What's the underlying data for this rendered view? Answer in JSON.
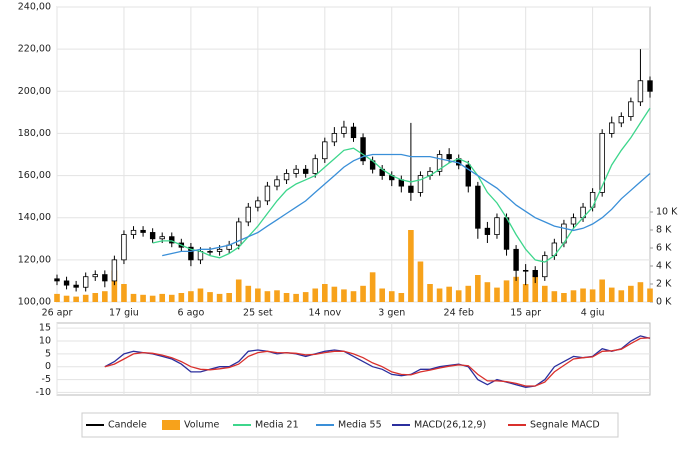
{
  "chart_data": [
    {
      "type": "candlestick",
      "categories": [
        "26 apr",
        null,
        null,
        null,
        null,
        null,
        null,
        "17 giu",
        null,
        null,
        null,
        null,
        null,
        null,
        "6 ago",
        null,
        null,
        null,
        null,
        null,
        null,
        "25 set",
        null,
        null,
        null,
        null,
        null,
        null,
        "14 nov",
        null,
        null,
        null,
        null,
        null,
        null,
        "3 gen",
        null,
        null,
        null,
        null,
        null,
        null,
        "24 feb",
        null,
        null,
        null,
        null,
        null,
        null,
        "15 apr",
        null,
        null,
        null,
        null,
        null,
        null,
        "4 giu",
        null,
        null,
        null,
        null,
        null,
        null
      ],
      "ylim": [
        100,
        240
      ],
      "yticks": [
        {
          "value": 100,
          "label": "100,00"
        },
        {
          "value": 120,
          "label": "120,00"
        },
        {
          "value": 140,
          "label": "140,00"
        },
        {
          "value": 160,
          "label": "160,00"
        },
        {
          "value": 180,
          "label": "180,00"
        },
        {
          "value": 200,
          "label": "200,00"
        },
        {
          "value": 220,
          "label": "220,00"
        },
        {
          "value": 240,
          "label": "240,00"
        }
      ],
      "y2lim": [
        0,
        10000
      ],
      "y2ticks": [
        {
          "value": 0,
          "label": "0 K"
        },
        {
          "value": 2000,
          "label": "2 K"
        },
        {
          "value": 4000,
          "label": "4 K"
        },
        {
          "value": 6000,
          "label": "6 K"
        },
        {
          "value": 8000,
          "label": "8 K"
        },
        {
          "value": 10000,
          "label": "10 K"
        }
      ],
      "grid": true,
      "series": [
        {
          "name": "Candele",
          "color": "#000000",
          "open": [
            111,
            110,
            108,
            107,
            112,
            113,
            110,
            120,
            132,
            134,
            133,
            130,
            131,
            128,
            126,
            120,
            124,
            124,
            125,
            127,
            138,
            145,
            148,
            155,
            158,
            161,
            163,
            161,
            168,
            176,
            180,
            183,
            178,
            167,
            163,
            160,
            158,
            155,
            152,
            160,
            162,
            170,
            168,
            165,
            155,
            135,
            132,
            140,
            125,
            115,
            115,
            112,
            122,
            128,
            137,
            140,
            145,
            152,
            180,
            185,
            188,
            195,
            205
          ],
          "high": [
            113,
            112,
            110,
            114,
            115,
            115,
            122,
            134,
            136,
            136,
            135,
            133,
            133,
            130,
            128,
            126,
            126,
            127,
            129,
            140,
            147,
            150,
            157,
            160,
            163,
            165,
            165,
            170,
            178,
            183,
            186,
            185,
            180,
            169,
            165,
            162,
            160,
            185,
            162,
            164,
            172,
            173,
            170,
            167,
            157,
            138,
            142,
            142,
            127,
            118,
            117,
            124,
            130,
            139,
            142,
            147,
            154,
            182,
            188,
            190,
            197,
            220,
            207
          ],
          "low": [
            108,
            106,
            105,
            105,
            110,
            107,
            108,
            118,
            130,
            131,
            128,
            128,
            126,
            124,
            117,
            118,
            122,
            122,
            123,
            125,
            136,
            143,
            146,
            153,
            156,
            159,
            159,
            159,
            166,
            174,
            178,
            176,
            165,
            161,
            158,
            155,
            152,
            148,
            150,
            158,
            160,
            166,
            163,
            152,
            130,
            128,
            130,
            122,
            110,
            108,
            109,
            110,
            120,
            126,
            135,
            138,
            143,
            150,
            178,
            183,
            186,
            193,
            197
          ],
          "close": [
            110,
            108,
            107,
            112,
            113,
            110,
            120,
            132,
            134,
            133,
            130,
            131,
            128,
            126,
            120,
            124,
            124,
            125,
            127,
            138,
            145,
            148,
            155,
            158,
            161,
            163,
            161,
            168,
            176,
            180,
            183,
            178,
            167,
            163,
            160,
            158,
            155,
            152,
            160,
            162,
            170,
            168,
            165,
            155,
            135,
            132,
            140,
            125,
            115,
            115,
            112,
            122,
            128,
            137,
            140,
            145,
            152,
            180,
            185,
            188,
            195,
            205,
            200
          ]
        },
        {
          "name": "Volume",
          "color": "#f7a21b",
          "axis": "y2",
          "values": [
            900,
            700,
            600,
            800,
            1000,
            1200,
            3500,
            2000,
            900,
            800,
            700,
            900,
            800,
            1000,
            1200,
            1500,
            1100,
            900,
            1000,
            2500,
            1800,
            1500,
            1200,
            1300,
            1000,
            900,
            1100,
            1500,
            2000,
            1700,
            1400,
            1200,
            1800,
            3300,
            1500,
            1200,
            1000,
            8000,
            4500,
            2000,
            1500,
            1700,
            1300,
            1800,
            3000,
            2200,
            1600,
            2400,
            2800,
            2000,
            3000,
            1800,
            1200,
            1000,
            1300,
            1500,
            1400,
            2500,
            1600,
            1300,
            1800,
            2200,
            1500
          ]
        },
        {
          "name": "Media 21",
          "color": "#3dd68c",
          "values": [
            null,
            null,
            null,
            null,
            null,
            null,
            null,
            null,
            null,
            null,
            128,
            129,
            129,
            127,
            125,
            124,
            122,
            121,
            123,
            126,
            131,
            136,
            142,
            148,
            153,
            156,
            158,
            160,
            164,
            168,
            172,
            173,
            170,
            167,
            163,
            160,
            158,
            157,
            158,
            160,
            163,
            166,
            168,
            166,
            160,
            152,
            147,
            140,
            132,
            125,
            120,
            119,
            122,
            128,
            135,
            140,
            145,
            155,
            165,
            172,
            178,
            185,
            192
          ]
        },
        {
          "name": "Media 55",
          "color": "#3a8fd8",
          "values": [
            null,
            null,
            null,
            null,
            null,
            null,
            null,
            null,
            null,
            null,
            null,
            122,
            123,
            124,
            124,
            125,
            125,
            126,
            127,
            129,
            131,
            133,
            136,
            139,
            142,
            145,
            148,
            152,
            156,
            160,
            164,
            167,
            169,
            170,
            170,
            170,
            170,
            169,
            169,
            169,
            168,
            167,
            166,
            163,
            160,
            157,
            154,
            150,
            146,
            143,
            140,
            138,
            136,
            135,
            134,
            135,
            137,
            140,
            144,
            149,
            153,
            157,
            161
          ]
        }
      ]
    },
    {
      "type": "line",
      "ylim": [
        -11,
        17
      ],
      "yticks": [
        -10,
        -5,
        0,
        5,
        10,
        15
      ],
      "grid": true,
      "series": [
        {
          "name": "MACD(26,12,9)",
          "color": "#2b2f9e",
          "values": [
            null,
            null,
            null,
            null,
            null,
            0,
            2,
            5,
            6,
            5.5,
            5,
            4,
            3,
            1,
            -2,
            -2,
            -1,
            0,
            0,
            2,
            6,
            6.5,
            6,
            5,
            5.5,
            5,
            4,
            5,
            6,
            6.5,
            6,
            4,
            2,
            0,
            -1,
            -3,
            -3.5,
            -3,
            -1,
            -1,
            0,
            0.5,
            1,
            0,
            -5,
            -7,
            -5,
            -6,
            -7,
            -8,
            -7.5,
            -5,
            0,
            2,
            4,
            3.5,
            4,
            7,
            6,
            7,
            10,
            12,
            11
          ]
        },
        {
          "name": "Segnale MACD",
          "color": "#d9302c",
          "values": [
            null,
            null,
            null,
            null,
            null,
            0,
            1,
            3,
            5,
            5.5,
            5.2,
            4.5,
            3.5,
            2,
            0,
            -1,
            -1.2,
            -0.8,
            -0.3,
            1,
            4,
            5.5,
            6,
            5.5,
            5.4,
            5.2,
            4.6,
            4.8,
            5.5,
            6,
            6,
            5,
            3.5,
            1.5,
            0,
            -2,
            -3,
            -3.2,
            -2,
            -1.3,
            -0.5,
            0.2,
            0.7,
            0.4,
            -3,
            -5.5,
            -5.5,
            -5.8,
            -6.5,
            -7.5,
            -7.5,
            -6,
            -2,
            0.5,
            3,
            3.5,
            3.8,
            6,
            6.2,
            6.8,
            9,
            11,
            11.2
          ]
        }
      ]
    }
  ]
}
